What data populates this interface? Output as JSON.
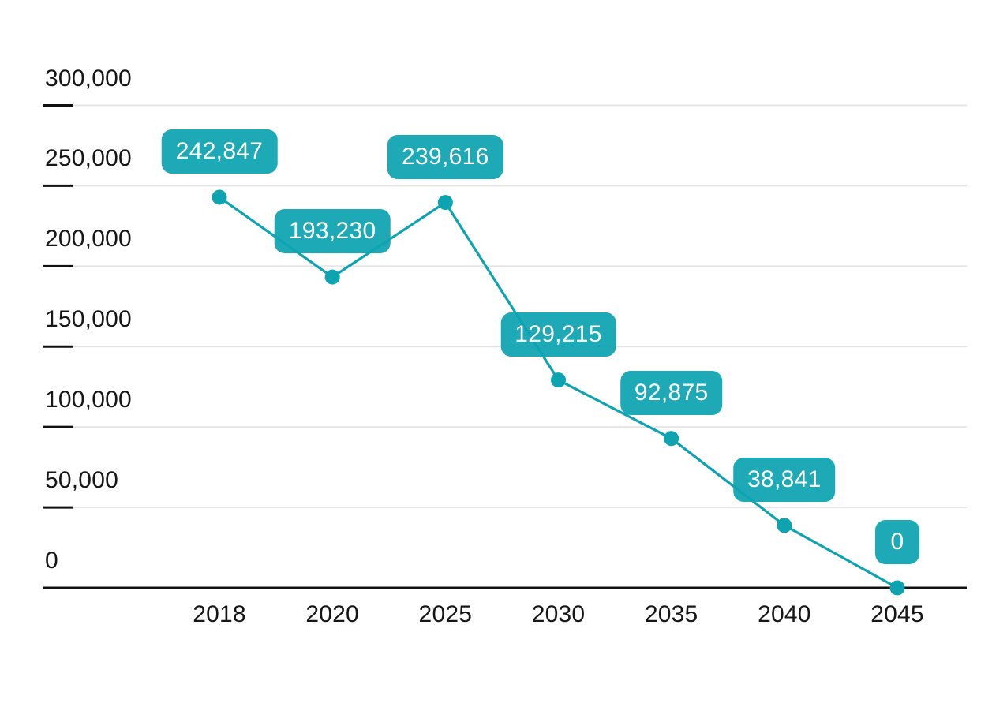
{
  "chart_data": {
    "type": "line",
    "x_categories": [
      "2018",
      "2020",
      "2025",
      "2030",
      "2035",
      "2040",
      "2045"
    ],
    "values": [
      242847,
      193230,
      239616,
      129215,
      92875,
      38841,
      0
    ],
    "point_labels": [
      "242,847",
      "193,230",
      "239,616",
      "129,215",
      "92,875",
      "38,841",
      "0"
    ],
    "y_ticks": [
      0,
      50000,
      100000,
      150000,
      200000,
      250000,
      300000
    ],
    "y_tick_labels": [
      "0",
      "50,000",
      "100,000",
      "150,000",
      "200,000",
      "250,000",
      "300,000"
    ],
    "ylim": [
      0,
      300000
    ],
    "grid": true,
    "legend_position": "none",
    "xlabel": "",
    "ylabel": "",
    "colors": {
      "line": "#0da3b1",
      "marker": "#0da3b1",
      "label_badge": "#0da3b1",
      "label_text": "#ffffff",
      "gridline": "#e4e4e4",
      "axis": "#111111",
      "tick_text": "#161616",
      "background": "#ffffff"
    }
  }
}
